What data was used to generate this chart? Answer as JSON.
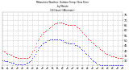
{
  "title_line1": "Milwaukee Weather: Outdoor Temp / Dew Point",
  "title_line2": "by Minute",
  "title_line3": "(24 Hours) (Alternate)",
  "bg_color": "#ffffff",
  "plot_bg_color": "#ffffff",
  "grid_color": "#cccccc",
  "red_color": "#ff0000",
  "blue_color": "#0000ff",
  "text_color": "#000000",
  "title_color": "#000000",
  "yticks": [
    75,
    70,
    65,
    60,
    55,
    50,
    45,
    40,
    35,
    30
  ],
  "ylim": [
    26,
    78
  ],
  "xlim": [
    0,
    1440
  ],
  "xtick_positions": [
    0,
    60,
    120,
    180,
    240,
    300,
    360,
    420,
    480,
    540,
    600,
    660,
    720,
    780,
    840,
    900,
    960,
    1020,
    1080,
    1140,
    1200,
    1260,
    1320,
    1380,
    1440
  ],
  "xtick_labels": [
    "12\n00\nam",
    "1\n00\nam",
    "2\n00\nam",
    "3\n00\nam",
    "4\n00\nam",
    "5\n00\nam",
    "6\n00\nam",
    "7\n00\nam",
    "8\n00\nam",
    "9\n00\nam",
    "10\n00\nam",
    "11\n00\nam",
    "12\n00\npm",
    "1\n00\npm",
    "2\n00\npm",
    "3\n00\npm",
    "4\n00\npm",
    "5\n00\npm",
    "6\n00\npm",
    "7\n00\npm",
    "8\n00\npm",
    "9\n00\npm",
    "10\n00\npm",
    "11\n00\npm",
    "12\n00\nam"
  ],
  "red_x": [
    0,
    15,
    30,
    45,
    60,
    75,
    90,
    105,
    120,
    135,
    150,
    165,
    180,
    195,
    210,
    225,
    240,
    255,
    270,
    285,
    300,
    315,
    330,
    345,
    360,
    375,
    390,
    405,
    420,
    435,
    450,
    465,
    480,
    495,
    510,
    525,
    540,
    555,
    570,
    585,
    600,
    615,
    630,
    645,
    660,
    675,
    690,
    705,
    720,
    735,
    750,
    765,
    780,
    795,
    810,
    825,
    840,
    855,
    870,
    885,
    900,
    915,
    930,
    945,
    960,
    975,
    990,
    1005,
    1020,
    1035,
    1050,
    1065,
    1080,
    1095,
    1110,
    1125,
    1140,
    1155,
    1170,
    1185,
    1200,
    1215,
    1230,
    1245,
    1260,
    1275,
    1290,
    1305,
    1320,
    1335,
    1350,
    1365,
    1380,
    1395,
    1410,
    1425,
    1440
  ],
  "red_y": [
    40,
    39,
    39,
    38,
    37,
    37,
    36,
    36,
    35,
    35,
    34,
    34,
    33,
    33,
    33,
    33,
    33,
    33,
    33,
    33,
    33,
    34,
    35,
    37,
    39,
    41,
    44,
    47,
    50,
    52,
    54,
    56,
    57,
    58,
    59,
    60,
    61,
    62,
    63,
    64,
    65,
    66,
    67,
    67,
    68,
    68,
    68,
    68,
    67,
    67,
    66,
    66,
    65,
    65,
    65,
    65,
    65,
    65,
    65,
    64,
    63,
    62,
    61,
    60,
    58,
    57,
    55,
    54,
    52,
    51,
    50,
    49,
    48,
    47,
    46,
    45,
    44,
    43,
    42,
    41,
    40,
    39,
    38,
    37,
    37,
    36,
    36,
    35,
    35,
    35,
    34,
    34,
    33,
    33,
    33,
    33,
    33
  ],
  "blue_x": [
    0,
    15,
    30,
    45,
    60,
    75,
    90,
    105,
    120,
    135,
    150,
    165,
    180,
    195,
    210,
    225,
    240,
    255,
    270,
    285,
    300,
    315,
    330,
    345,
    360,
    375,
    390,
    405,
    420,
    435,
    450,
    465,
    480,
    495,
    510,
    525,
    540,
    555,
    570,
    585,
    600,
    615,
    630,
    645,
    660,
    675,
    690,
    705,
    720,
    735,
    750,
    765,
    780,
    795,
    810,
    825,
    840,
    855,
    870,
    885,
    900,
    915,
    930,
    945,
    960,
    975,
    990,
    1005,
    1020,
    1035,
    1050,
    1065,
    1080,
    1095,
    1110,
    1125,
    1140,
    1155,
    1170,
    1185,
    1200,
    1215,
    1230,
    1245,
    1260,
    1275,
    1290,
    1305,
    1320,
    1335,
    1350,
    1365,
    1380,
    1395,
    1410,
    1425,
    1440
  ],
  "blue_y": [
    31,
    31,
    30,
    30,
    30,
    29,
    29,
    28,
    28,
    28,
    27,
    27,
    27,
    27,
    27,
    27,
    27,
    27,
    27,
    28,
    28,
    29,
    30,
    31,
    33,
    35,
    37,
    39,
    41,
    43,
    45,
    46,
    47,
    48,
    49,
    49,
    50,
    50,
    51,
    51,
    51,
    51,
    51,
    51,
    51,
    51,
    51,
    50,
    50,
    49,
    49,
    48,
    48,
    47,
    47,
    47,
    47,
    47,
    46,
    46,
    45,
    44,
    43,
    42,
    41,
    40,
    38,
    37,
    36,
    35,
    33,
    32,
    31,
    30,
    29,
    28,
    27,
    27,
    26,
    26,
    26,
    26,
    26,
    26,
    26,
    26,
    26,
    26,
    26,
    26,
    26,
    26,
    26,
    26,
    26,
    26,
    26
  ]
}
